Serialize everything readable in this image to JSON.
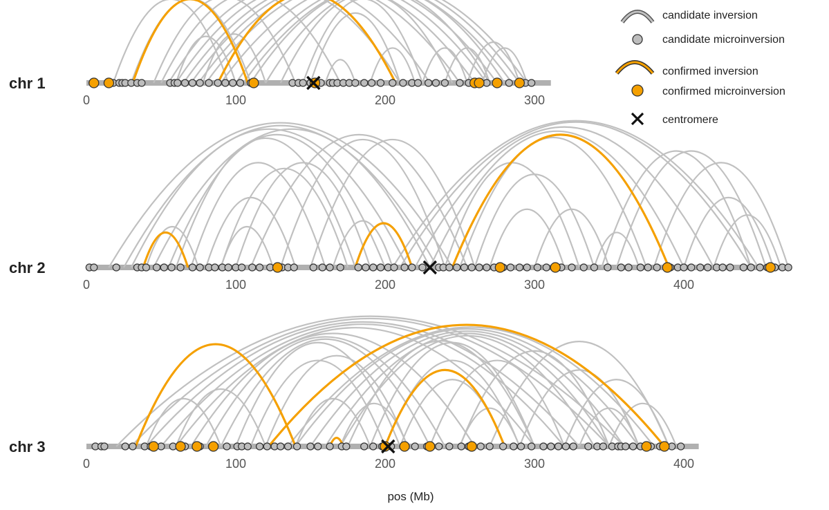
{
  "chart_data": {
    "type": "scatter",
    "title": "",
    "xlabel": "pos (Mb)",
    "ylabel": "",
    "grid": false,
    "legend": {
      "placement": "top-right",
      "entries": [
        {
          "key": "candidate-inversion",
          "label": "candidate inversion"
        },
        {
          "key": "candidate-microinversion",
          "label": "candidate microinversion"
        },
        {
          "key": "confirmed-inversion",
          "label": "confirmed inversion"
        },
        {
          "key": "confirmed-microinversion",
          "label": "confirmed microinversion"
        },
        {
          "key": "centromere",
          "label": "centromere"
        }
      ]
    },
    "colors": {
      "candidate_arc": "#c0c0c0",
      "confirmed_arc": "#f5a000",
      "candidate_point": "#bdbdbd",
      "confirmed_point": "#f5a000",
      "chromosome_bar": "#b0b0b0",
      "centromere": "#111111"
    },
    "chromosomes": [
      {
        "name": "chr 1",
        "length": 311,
        "xlim": [
          0,
          311
        ],
        "ticks": [
          0,
          100,
          200,
          300
        ],
        "centromere": 152,
        "candidate_microinversions": [
          4,
          18,
          22,
          24,
          26,
          30,
          34,
          37,
          56,
          59,
          61,
          66,
          71,
          76,
          82,
          88,
          93,
          98,
          103,
          110,
          138,
          142,
          145,
          150,
          157,
          163,
          165,
          168,
          172,
          176,
          180,
          186,
          191,
          197,
          205,
          212,
          218,
          222,
          229,
          234,
          240,
          250,
          256,
          262,
          268,
          275,
          283,
          290,
          294,
          298
        ],
        "confirmed_microinversions": [
          5,
          15,
          112,
          153,
          260,
          263,
          275,
          290
        ],
        "candidate_inversions": [
          [
            18,
            95
          ],
          [
            30,
            110
          ],
          [
            45,
            140
          ],
          [
            50,
            170
          ],
          [
            55,
            210
          ],
          [
            60,
            230
          ],
          [
            65,
            250
          ],
          [
            70,
            260
          ],
          [
            75,
            268
          ],
          [
            80,
            275
          ],
          [
            90,
            285
          ],
          [
            100,
            290
          ],
          [
            105,
            295
          ],
          [
            110,
            280
          ],
          [
            120,
            270
          ],
          [
            130,
            245
          ],
          [
            145,
            225
          ],
          [
            150,
            210
          ],
          [
            60,
            100
          ],
          [
            78,
            120
          ],
          [
            160,
            180
          ],
          [
            190,
            220
          ],
          [
            225,
            255
          ],
          [
            240,
            270
          ],
          [
            255,
            290
          ],
          [
            265,
            295
          ]
        ],
        "confirmed_inversions": [
          [
            31,
            108
          ],
          [
            88,
            207
          ]
        ]
      },
      {
        "name": "chr 2",
        "length": 472,
        "xlim": [
          0,
          472
        ],
        "ticks": [
          0,
          100,
          200,
          300,
          400
        ],
        "centromere": 230,
        "candidate_microinversions": [
          2,
          5,
          20,
          34,
          37,
          40,
          47,
          52,
          57,
          63,
          71,
          76,
          82,
          86,
          91,
          95,
          100,
          104,
          111,
          116,
          123,
          131,
          135,
          139,
          152,
          158,
          163,
          170,
          182,
          187,
          192,
          197,
          202,
          206,
          213,
          218,
          225,
          236,
          239,
          243,
          248,
          253,
          258,
          263,
          268,
          273,
          279,
          284,
          290,
          295,
          302,
          308,
          313,
          318,
          325,
          333,
          340,
          349,
          358,
          363,
          371,
          376,
          382,
          391,
          396,
          400,
          405,
          411,
          416,
          422,
          426,
          431,
          440,
          445,
          451,
          456,
          461,
          466,
          470
        ],
        "confirmed_microinversions": [
          128,
          277,
          314,
          389,
          458
        ],
        "candidate_inversions": [
          [
            15,
            245
          ],
          [
            25,
            235
          ],
          [
            30,
            215
          ],
          [
            45,
            230
          ],
          [
            55,
            200
          ],
          [
            60,
            180
          ],
          [
            70,
            160
          ],
          [
            80,
            140
          ],
          [
            90,
            175
          ],
          [
            100,
            190
          ],
          [
            110,
            255
          ],
          [
            130,
            240
          ],
          [
            150,
            260
          ],
          [
            205,
            450
          ],
          [
            210,
            445
          ],
          [
            220,
            420
          ],
          [
            230,
            400
          ],
          [
            240,
            330
          ],
          [
            250,
            375
          ],
          [
            260,
            340
          ],
          [
            270,
            320
          ],
          [
            300,
            350
          ],
          [
            340,
            370
          ],
          [
            345,
            445
          ],
          [
            355,
            455
          ],
          [
            380,
            470
          ],
          [
            400,
            460
          ],
          [
            420,
            465
          ],
          [
            40,
            75
          ],
          [
            90,
            125
          ],
          [
            165,
            205
          ]
        ],
        "confirmed_inversions": [
          [
            38,
            68
          ],
          [
            180,
            218
          ],
          [
            245,
            390
          ]
        ]
      },
      {
        "name": "chr 3",
        "length": 410,
        "xlim": [
          0,
          410
        ],
        "ticks": [
          0,
          100,
          200,
          300,
          400
        ],
        "centromere": 202,
        "candidate_microinversions": [
          6,
          10,
          12,
          26,
          31,
          39,
          43,
          50,
          58,
          66,
          76,
          84,
          94,
          101,
          104,
          108,
          116,
          121,
          126,
          130,
          135,
          141,
          150,
          155,
          163,
          171,
          174,
          186,
          192,
          198,
          204,
          212,
          220,
          228,
          236,
          243,
          251,
          256,
          264,
          270,
          279,
          286,
          291,
          298,
          306,
          311,
          316,
          321,
          326,
          336,
          342,
          346,
          352,
          356,
          358,
          361,
          366,
          371,
          378,
          384,
          392,
          398
        ],
        "confirmed_microinversions": [
          45,
          63,
          74,
          85,
          200,
          213,
          230,
          258,
          375,
          387
        ],
        "candidate_inversions": [
          [
            20,
            360
          ],
          [
            30,
            350
          ],
          [
            40,
            330
          ],
          [
            50,
            320
          ],
          [
            60,
            300
          ],
          [
            70,
            260
          ],
          [
            80,
            240
          ],
          [
            90,
            230
          ],
          [
            100,
            210
          ],
          [
            110,
            200
          ],
          [
            120,
            215
          ],
          [
            135,
            380
          ],
          [
            140,
            370
          ],
          [
            150,
            360
          ],
          [
            160,
            350
          ],
          [
            170,
            340
          ],
          [
            175,
            300
          ],
          [
            190,
            300
          ],
          [
            200,
            290
          ],
          [
            210,
            280
          ],
          [
            230,
            320
          ],
          [
            250,
            350
          ],
          [
            270,
            390
          ],
          [
            290,
            370
          ],
          [
            320,
            390
          ],
          [
            40,
            90
          ],
          [
            60,
            120
          ],
          [
            140,
            190
          ],
          [
            170,
            215
          ],
          [
            250,
            290
          ],
          [
            330,
            370
          ],
          [
            350,
            395
          ]
        ],
        "confirmed_inversions": [
          [
            33,
            140
          ],
          [
            122,
            387
          ],
          [
            200,
            280
          ],
          [
            163,
            172
          ]
        ]
      }
    ]
  }
}
